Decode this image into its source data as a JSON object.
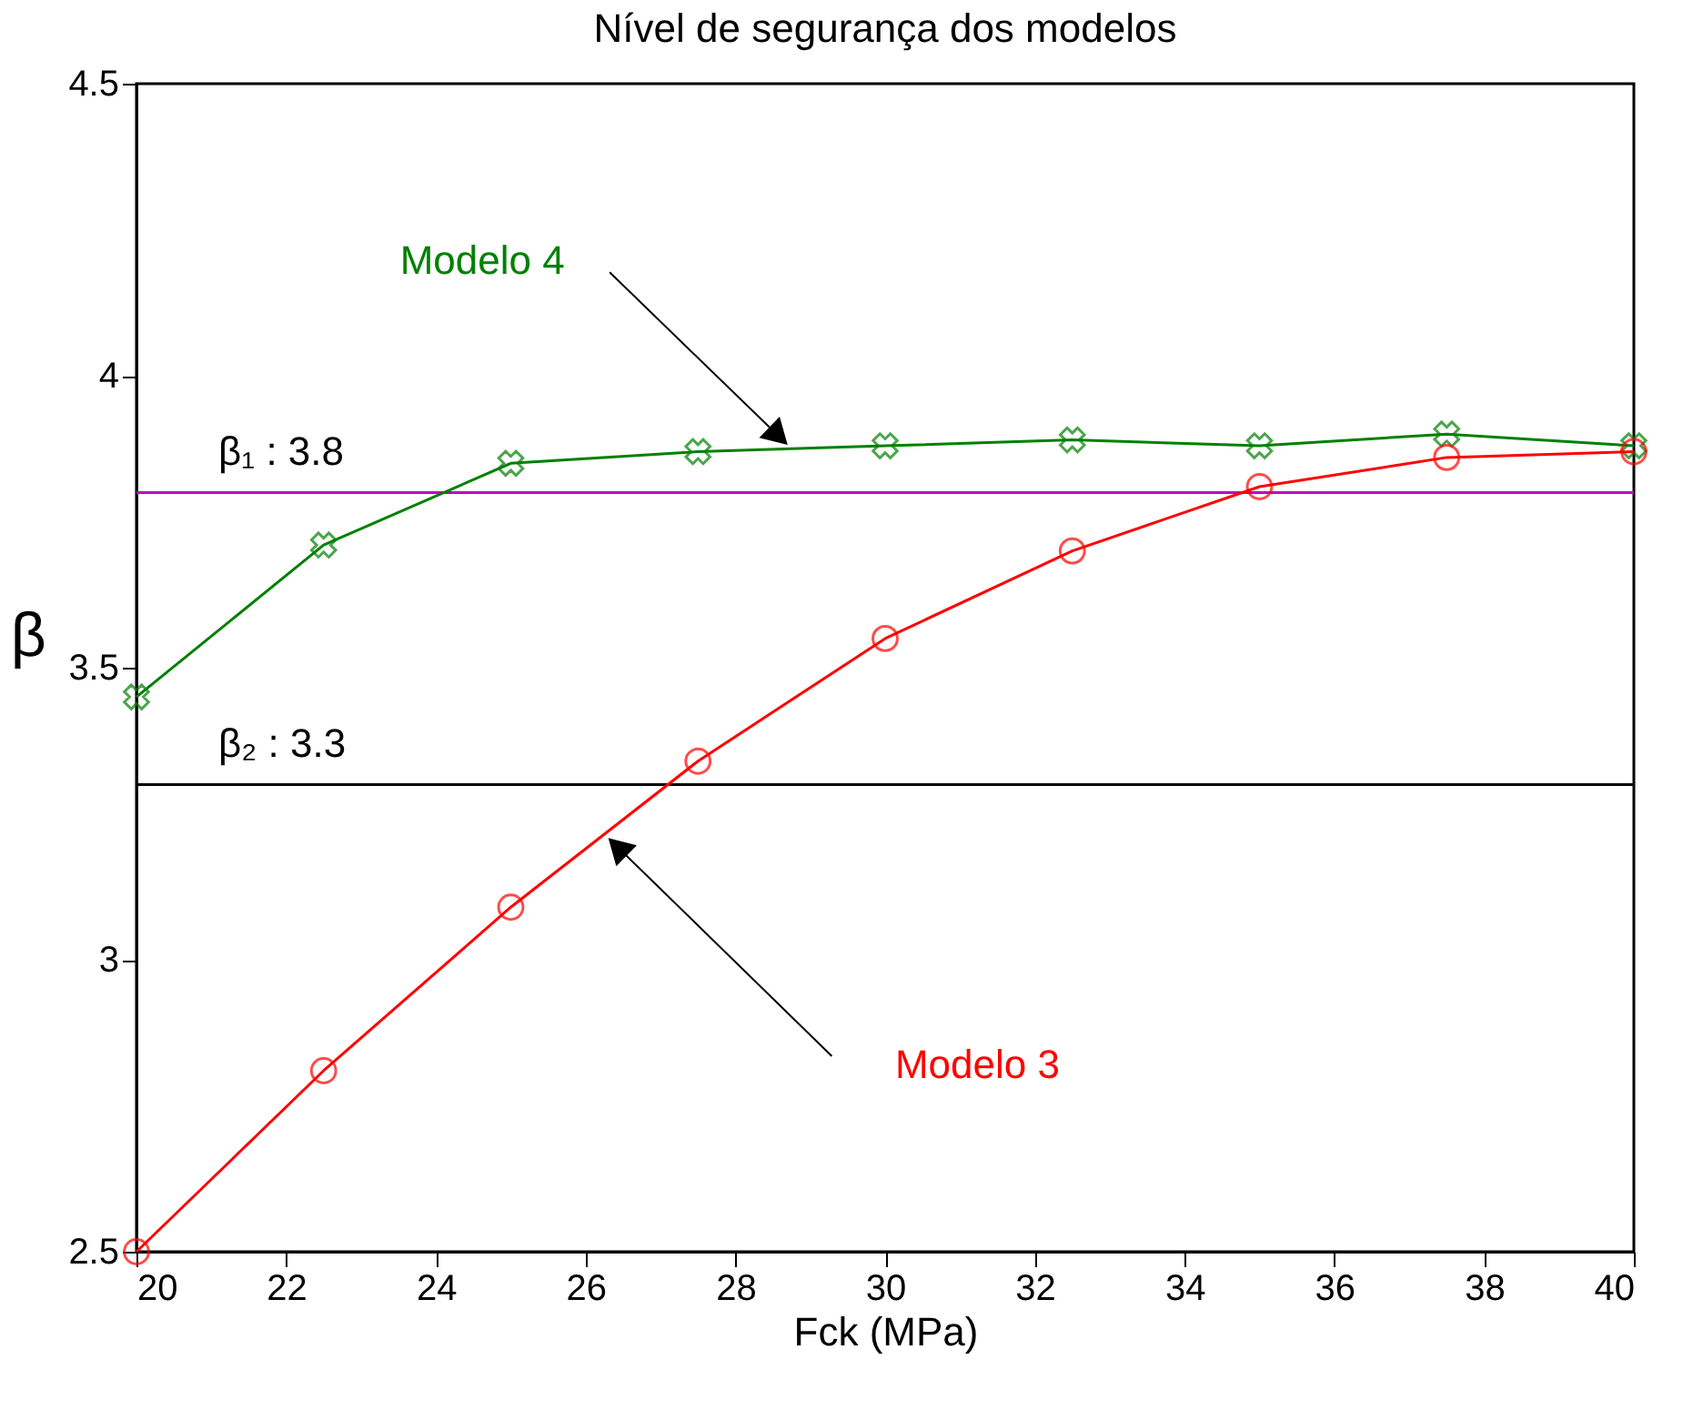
{
  "chart_data": {
    "type": "line",
    "title": "Nível de segurança dos modelos",
    "xlabel": "Fck (MPa)",
    "ylabel": "β",
    "x": [
      20,
      22.5,
      25,
      27.5,
      30,
      32.5,
      35,
      37.5,
      40
    ],
    "series": [
      {
        "name": "Modelo 4",
        "color": "#008000",
        "marker": "cross",
        "values": [
          3.45,
          3.71,
          3.85,
          3.87,
          3.88,
          3.89,
          3.88,
          3.9,
          3.88
        ]
      },
      {
        "name": "Modelo 3",
        "color": "#ff0000",
        "marker": "circle",
        "values": [
          2.5,
          2.81,
          3.09,
          3.34,
          3.55,
          3.7,
          3.81,
          3.86,
          3.87
        ]
      }
    ],
    "xlim": [
      20,
      40
    ],
    "xticks": [
      20,
      22,
      24,
      26,
      28,
      30,
      32,
      34,
      36,
      38,
      40
    ],
    "ylim": [
      2.5,
      4.5
    ],
    "yticks": [
      2.5,
      3,
      3.5,
      4,
      4.5
    ],
    "ref_lines": [
      {
        "axis": "y",
        "value": 3.8,
        "label": "β₁ : 3.8",
        "color": "#c000c0"
      },
      {
        "axis": "y",
        "value": 3.3,
        "label": "β₂ : 3.3",
        "color": "#000000"
      }
    ],
    "grid": false,
    "line_style": "solid"
  }
}
